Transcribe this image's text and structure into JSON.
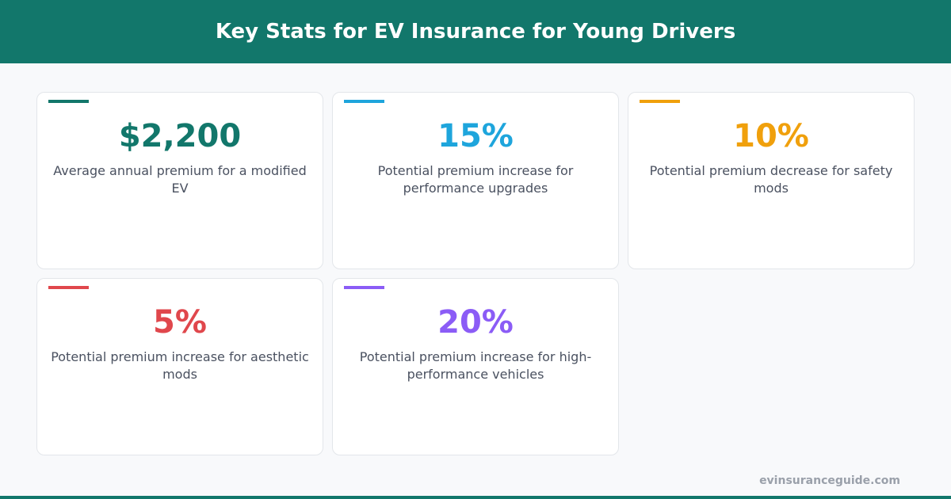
{
  "header": {
    "title": "Key Stats for EV Insurance for Young Drivers"
  },
  "cards": [
    {
      "value": "$2,200",
      "description": "Average annual premium for a modified EV",
      "color": "#12776b"
    },
    {
      "value": "15%",
      "description": "Potential premium increase for performance upgrades",
      "color": "#1ea5dc"
    },
    {
      "value": "10%",
      "description": "Potential premium decrease for safety mods",
      "color": "#f0a00c"
    },
    {
      "value": "5%",
      "description": "Potential premium increase for aesthetic mods",
      "color": "#e0474c"
    },
    {
      "value": "20%",
      "description": "Potential premium increase for high-performance vehicles",
      "color": "#8b5cf6"
    }
  ],
  "footer": {
    "source": "evinsuranceguide.com"
  }
}
